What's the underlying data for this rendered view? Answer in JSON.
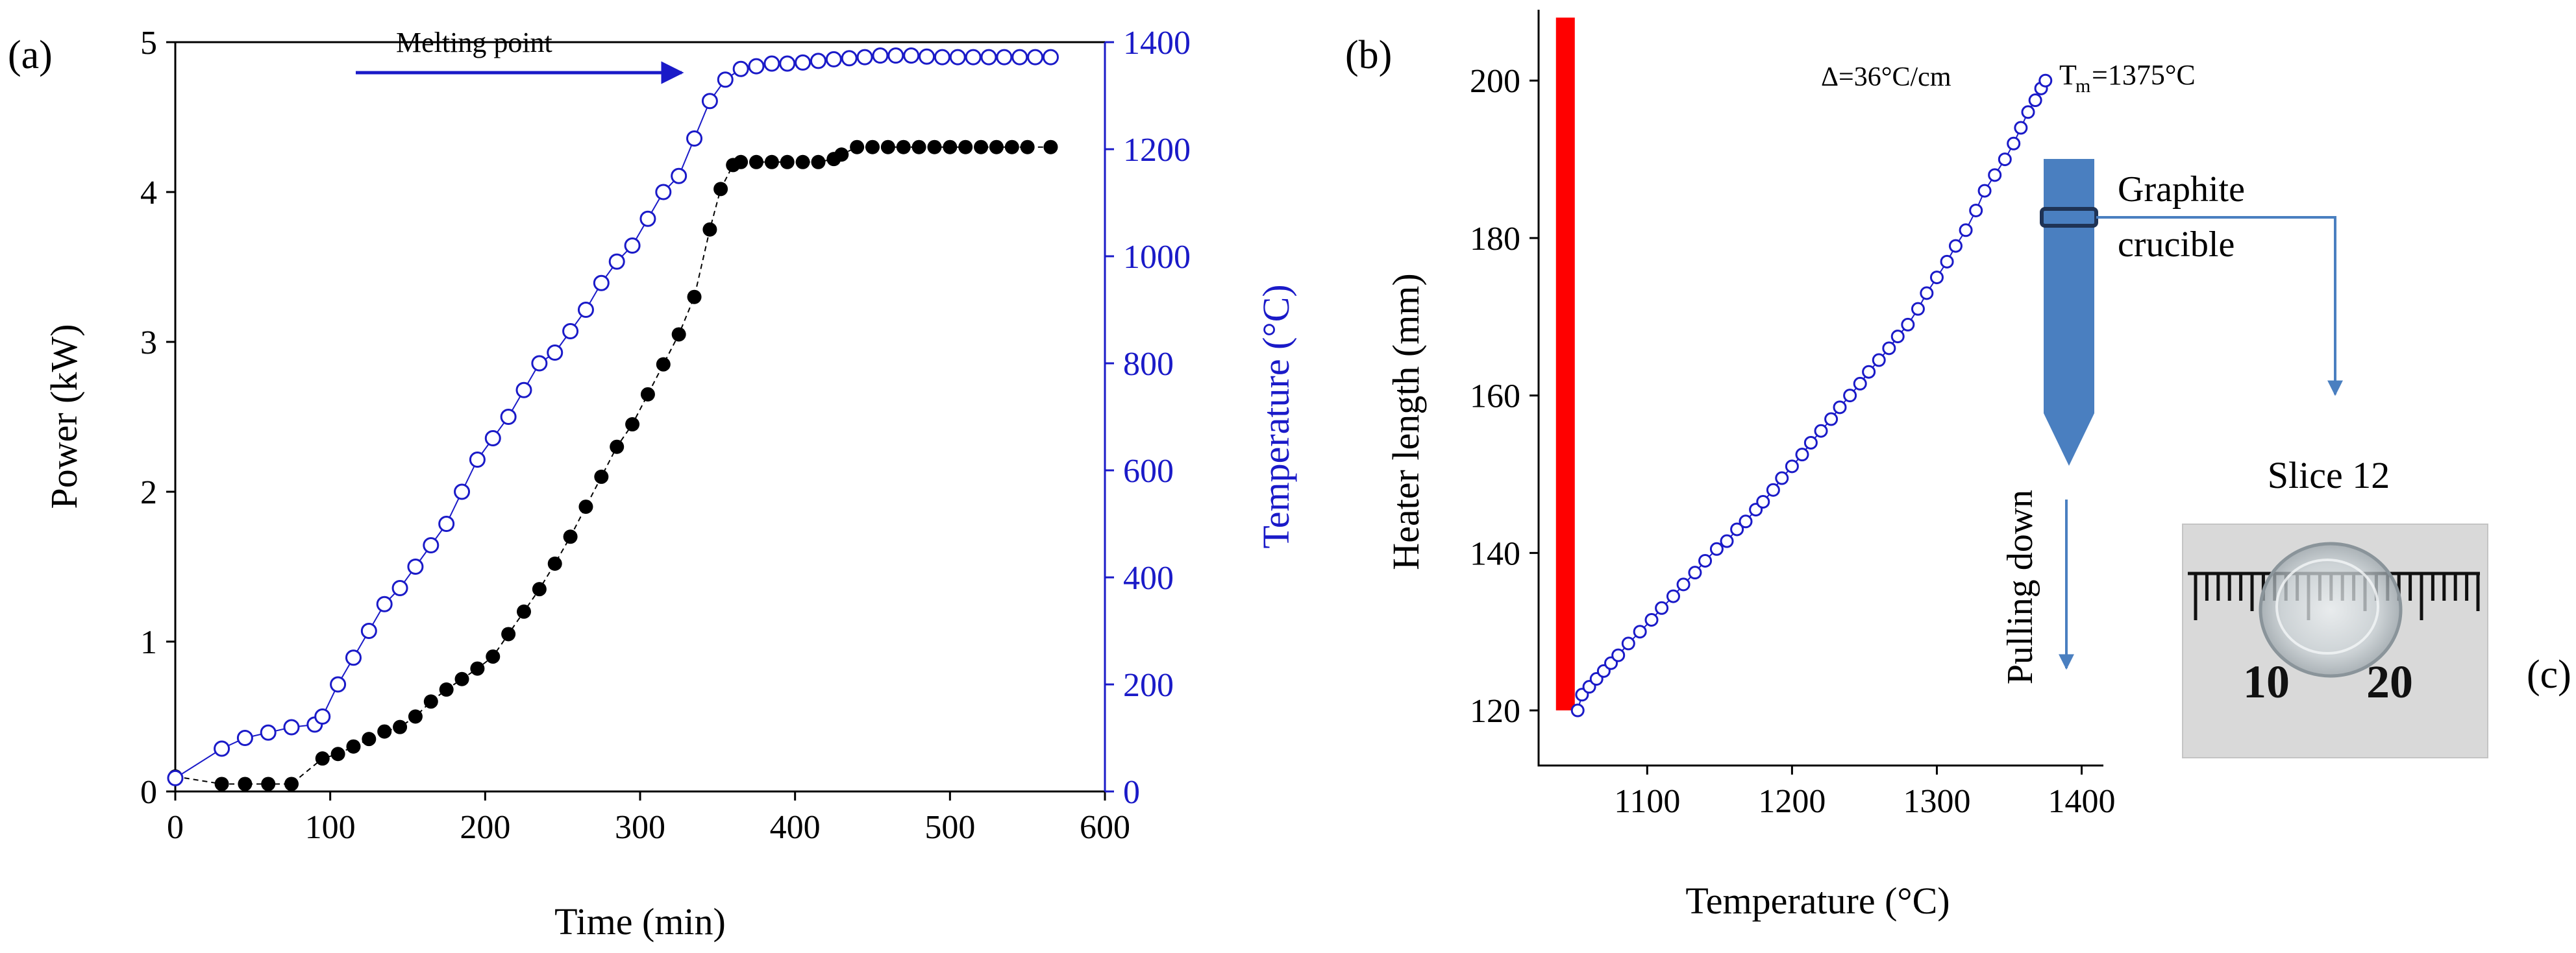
{
  "colors": {
    "blue": "#1a1ac8",
    "black": "#000000",
    "red": "#ff0000",
    "steel": "#4a7fc0",
    "ruler_bg": "#d9d9d9"
  },
  "chart_data": [
    {
      "panel": "(a)",
      "type": "scatter",
      "xlabel": "Time (min)",
      "ylabel": "Power (kW)",
      "y2label": "Temperature (°C)",
      "xlim": [
        0,
        600
      ],
      "ylim": [
        0,
        5
      ],
      "y2lim": [
        0,
        1400
      ],
      "x_ticks": [
        0,
        100,
        200,
        300,
        400,
        500,
        600
      ],
      "y_ticks": [
        0,
        1,
        2,
        3,
        4,
        5
      ],
      "y2_ticks": [
        0,
        200,
        400,
        600,
        800,
        1000,
        1200,
        1400
      ],
      "annotation": "Melting point",
      "series": [
        {
          "name": "Power",
          "axis": "left",
          "marker": "filled-circle",
          "points": [
            [
              0,
              0.1
            ],
            [
              30,
              0.05
            ],
            [
              45,
              0.05
            ],
            [
              60,
              0.05
            ],
            [
              75,
              0.05
            ],
            [
              95,
              0.22
            ],
            [
              105,
              0.25
            ],
            [
              115,
              0.3
            ],
            [
              125,
              0.35
            ],
            [
              135,
              0.4
            ],
            [
              145,
              0.43
            ],
            [
              155,
              0.5
            ],
            [
              165,
              0.6
            ],
            [
              175,
              0.68
            ],
            [
              185,
              0.75
            ],
            [
              195,
              0.82
            ],
            [
              205,
              0.9
            ],
            [
              215,
              1.05
            ],
            [
              225,
              1.2
            ],
            [
              235,
              1.35
            ],
            [
              245,
              1.52
            ],
            [
              255,
              1.7
            ],
            [
              265,
              1.9
            ],
            [
              275,
              2.1
            ],
            [
              285,
              2.3
            ],
            [
              295,
              2.45
            ],
            [
              305,
              2.65
            ],
            [
              315,
              2.85
            ],
            [
              325,
              3.05
            ],
            [
              335,
              3.3
            ],
            [
              345,
              3.75
            ],
            [
              352,
              4.02
            ],
            [
              360,
              4.18
            ],
            [
              365,
              4.2
            ],
            [
              375,
              4.2
            ],
            [
              385,
              4.2
            ],
            [
              395,
              4.2
            ],
            [
              405,
              4.2
            ],
            [
              415,
              4.2
            ],
            [
              425,
              4.22
            ],
            [
              430,
              4.25
            ],
            [
              440,
              4.3
            ],
            [
              450,
              4.3
            ],
            [
              460,
              4.3
            ],
            [
              470,
              4.3
            ],
            [
              480,
              4.3
            ],
            [
              490,
              4.3
            ],
            [
              500,
              4.3
            ],
            [
              510,
              4.3
            ],
            [
              520,
              4.3
            ],
            [
              530,
              4.3
            ],
            [
              540,
              4.3
            ],
            [
              550,
              4.3
            ],
            [
              565,
              4.3
            ]
          ]
        },
        {
          "name": "Temperature",
          "axis": "right",
          "marker": "open-circle",
          "points": [
            [
              0,
              25
            ],
            [
              30,
              80
            ],
            [
              45,
              100
            ],
            [
              60,
              110
            ],
            [
              75,
              120
            ],
            [
              90,
              125
            ],
            [
              95,
              140
            ],
            [
              105,
              200
            ],
            [
              115,
              250
            ],
            [
              125,
              300
            ],
            [
              135,
              350
            ],
            [
              145,
              380
            ],
            [
              155,
              420
            ],
            [
              165,
              460
            ],
            [
              175,
              500
            ],
            [
              185,
              560
            ],
            [
              195,
              620
            ],
            [
              205,
              660
            ],
            [
              215,
              700
            ],
            [
              225,
              750
            ],
            [
              235,
              800
            ],
            [
              245,
              820
            ],
            [
              255,
              860
            ],
            [
              265,
              900
            ],
            [
              275,
              950
            ],
            [
              285,
              990
            ],
            [
              295,
              1020
            ],
            [
              305,
              1070
            ],
            [
              315,
              1120
            ],
            [
              325,
              1150
            ],
            [
              335,
              1220
            ],
            [
              345,
              1290
            ],
            [
              355,
              1330
            ],
            [
              365,
              1350
            ],
            [
              375,
              1355
            ],
            [
              385,
              1360
            ],
            [
              395,
              1360
            ],
            [
              405,
              1362
            ],
            [
              415,
              1365
            ],
            [
              425,
              1368
            ],
            [
              435,
              1370
            ],
            [
              445,
              1372
            ],
            [
              455,
              1375
            ],
            [
              465,
              1375
            ],
            [
              475,
              1375
            ],
            [
              485,
              1373
            ],
            [
              495,
              1372
            ],
            [
              505,
              1372
            ],
            [
              515,
              1372
            ],
            [
              525,
              1372
            ],
            [
              535,
              1372
            ],
            [
              545,
              1372
            ],
            [
              555,
              1372
            ],
            [
              565,
              1372
            ]
          ]
        }
      ]
    },
    {
      "panel": "(b)",
      "type": "scatter",
      "xlabel": "Temperature (°C)",
      "ylabel": "Heater length (mm)",
      "xlim": [
        1025,
        1415
      ],
      "ylim": [
        113,
        209
      ],
      "x_ticks": [
        1100,
        1200,
        1300,
        1400
      ],
      "y_ticks": [
        120,
        140,
        160,
        180,
        200
      ],
      "heater_bar": {
        "x_from": 1037,
        "x_to": 1050,
        "y_from": 120,
        "y_to": 208
      },
      "annotations": {
        "gradient": "Δ=36°C/cm",
        "tm_label": "T",
        "tm_sub": "m",
        "tm_value": "=1375°C",
        "crucible": [
          "Graphite",
          "crucible"
        ],
        "pulling": "Pulling down"
      },
      "series": [
        {
          "name": "Temperature profile",
          "marker": "open-circle",
          "points": [
            [
              1052,
              120
            ],
            [
              1055,
              122
            ],
            [
              1060,
              123
            ],
            [
              1065,
              124
            ],
            [
              1070,
              125
            ],
            [
              1075,
              126
            ],
            [
              1080,
              127
            ],
            [
              1087,
              128.5
            ],
            [
              1095,
              130
            ],
            [
              1103,
              131.5
            ],
            [
              1110,
              133
            ],
            [
              1118,
              134.5
            ],
            [
              1125,
              136
            ],
            [
              1133,
              137.5
            ],
            [
              1140,
              139
            ],
            [
              1148,
              140.5
            ],
            [
              1155,
              141.5
            ],
            [
              1162,
              143
            ],
            [
              1168,
              144
            ],
            [
              1175,
              145.5
            ],
            [
              1180,
              146.5
            ],
            [
              1187,
              148
            ],
            [
              1193,
              149.5
            ],
            [
              1200,
              151
            ],
            [
              1207,
              152.5
            ],
            [
              1213,
              154
            ],
            [
              1220,
              155.5
            ],
            [
              1227,
              157
            ],
            [
              1233,
              158.5
            ],
            [
              1240,
              160
            ],
            [
              1247,
              161.5
            ],
            [
              1253,
              163
            ],
            [
              1260,
              164.5
            ],
            [
              1267,
              166
            ],
            [
              1273,
              167.5
            ],
            [
              1280,
              169
            ],
            [
              1287,
              171
            ],
            [
              1293,
              173
            ],
            [
              1300,
              175
            ],
            [
              1307,
              177
            ],
            [
              1313,
              179
            ],
            [
              1320,
              181
            ],
            [
              1327,
              183.5
            ],
            [
              1333,
              186
            ],
            [
              1340,
              188
            ],
            [
              1347,
              190
            ],
            [
              1353,
              192
            ],
            [
              1358,
              194
            ],
            [
              1363,
              196
            ],
            [
              1368,
              197.5
            ],
            [
              1372,
              199
            ],
            [
              1375,
              200
            ]
          ]
        }
      ]
    }
  ],
  "panel_c": {
    "title": "Slice 12",
    "label": "(c)",
    "ruler_labels": [
      "10",
      "20"
    ]
  }
}
